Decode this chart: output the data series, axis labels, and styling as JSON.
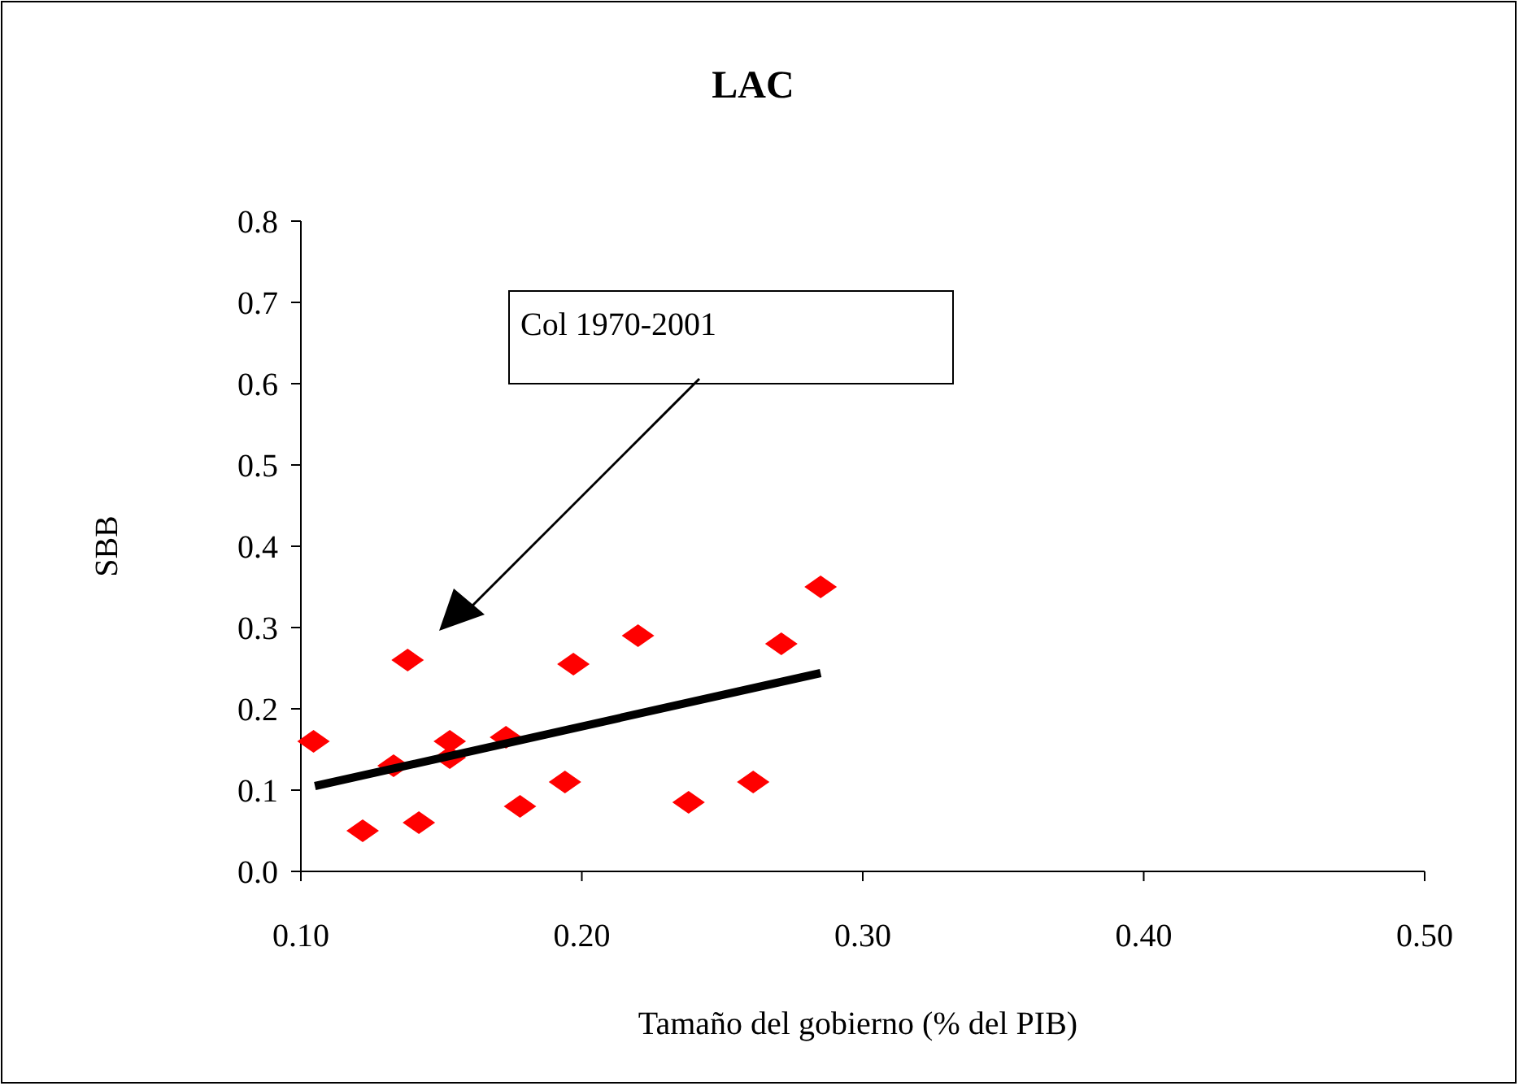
{
  "chart_data": {
    "type": "scatter",
    "title": "LAC",
    "xlabel": "Tamaño del gobierno (% del PIB)",
    "ylabel": "SBB",
    "annotations": [
      "Col 1970-2001"
    ],
    "series": [
      {
        "color": "#ff0000",
        "marker": "diamond",
        "x": [
          0.1045,
          0.122,
          0.133,
          0.138,
          0.142,
          0.153,
          0.153,
          0.173,
          0.178,
          0.194,
          0.197,
          0.22,
          0.238,
          0.261,
          0.271,
          0.285
        ],
        "values": [
          0.16,
          0.05,
          0.13,
          0.26,
          0.06,
          0.16,
          0.14,
          0.165,
          0.08,
          0.11,
          0.255,
          0.29,
          0.085,
          0.11,
          0.28,
          0.35
        ]
      },
      {
        "type": "line",
        "color": "#000000",
        "x": [
          0.105,
          0.285
        ],
        "values": [
          0.105,
          0.244
        ]
      }
    ],
    "xlim": [
      0.1,
      0.5
    ],
    "xticks": [
      {
        "value": 0.1,
        "label": "0.10"
      },
      {
        "value": 0.2,
        "label": "0.20"
      },
      {
        "value": 0.3,
        "label": "0.30"
      },
      {
        "value": 0.4,
        "label": "0.40"
      },
      {
        "value": 0.5,
        "label": "0.50"
      }
    ],
    "ylim": [
      0,
      0.8
    ],
    "yticks": [
      {
        "value": 0,
        "label": "0.0"
      },
      0.1,
      0.2,
      0.3,
      0.4,
      0.5,
      0.6,
      0.7,
      0.8
    ],
    "grid": false
  }
}
